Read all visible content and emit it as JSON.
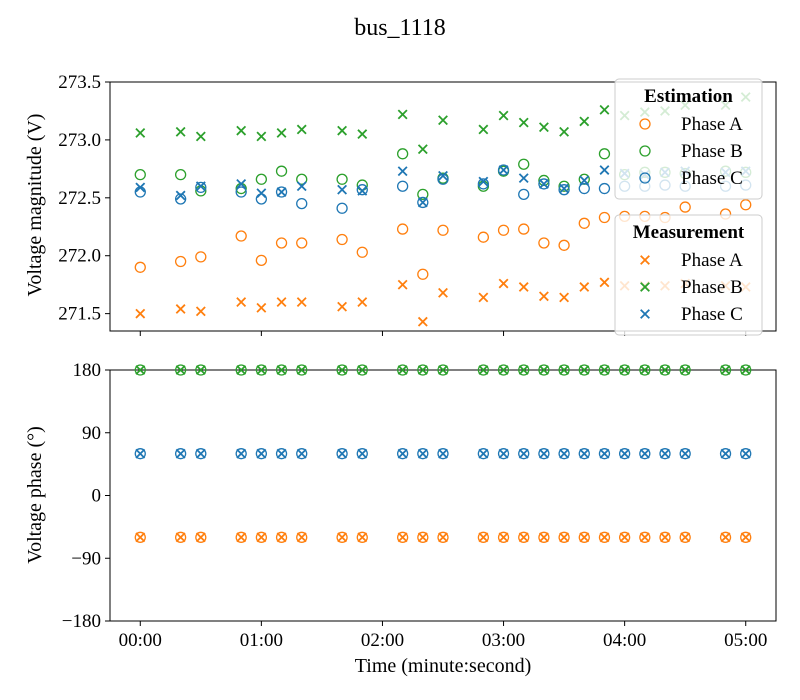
{
  "chart_data": {
    "title": "bus_1118",
    "xlabel": "Time (minute:second)",
    "x_tick_labels": [
      "00:00",
      "01:00",
      "02:00",
      "03:00",
      "04:00",
      "05:00"
    ],
    "x_ticks_seconds": [
      0,
      60,
      120,
      180,
      240,
      300
    ],
    "xlim_seconds": [
      -15,
      315
    ],
    "x_seconds": [
      0,
      20,
      30,
      50,
      60,
      70,
      80,
      100,
      110,
      130,
      140,
      150,
      170,
      180,
      190,
      200,
      210,
      220,
      230,
      240,
      250,
      260,
      270,
      290,
      300
    ],
    "colors": {
      "A": "#ff7f0e",
      "B": "#2ca02c",
      "C": "#1f77b4"
    },
    "legends": [
      {
        "title": "Estimation",
        "marker": "circle",
        "entries": [
          {
            "phase": "A",
            "label": "Phase A"
          },
          {
            "phase": "B",
            "label": "Phase B"
          },
          {
            "phase": "C",
            "label": "Phase C"
          }
        ]
      },
      {
        "title": "Measurement",
        "marker": "x",
        "entries": [
          {
            "phase": "A",
            "label": "Phase A"
          },
          {
            "phase": "B",
            "label": "Phase B"
          },
          {
            "phase": "C",
            "label": "Phase C"
          }
        ]
      }
    ],
    "subplots": [
      {
        "type": "scatter",
        "ylabel": "Voltage magnitude (V)",
        "ylim": [
          271.35,
          273.5
        ],
        "y_ticks": [
          271.5,
          272.0,
          272.5,
          273.0,
          273.5
        ],
        "y_tick_labels": [
          "271.5",
          "272.0",
          "272.5",
          "273.0",
          "273.5"
        ],
        "series": [
          {
            "phase": "A",
            "kind": "estimation",
            "values": [
              271.9,
              271.95,
              271.99,
              272.17,
              271.96,
              272.11,
              272.11,
              272.14,
              272.03,
              272.23,
              271.84,
              272.22,
              272.16,
              272.22,
              272.23,
              272.11,
              272.09,
              272.28,
              272.33,
              272.34,
              272.34,
              272.33,
              272.42,
              272.36,
              272.44
            ]
          },
          {
            "phase": "A",
            "kind": "measurement",
            "values": [
              271.5,
              271.54,
              271.52,
              271.6,
              271.55,
              271.6,
              271.6,
              271.56,
              271.6,
              271.75,
              271.43,
              271.68,
              271.64,
              271.76,
              271.73,
              271.65,
              271.64,
              271.73,
              271.77,
              271.74,
              271.74,
              271.74,
              271.76,
              271.74,
              271.73
            ]
          },
          {
            "phase": "B",
            "kind": "estimation",
            "values": [
              272.7,
              272.7,
              272.56,
              272.58,
              272.66,
              272.73,
              272.66,
              272.66,
              272.61,
              272.88,
              272.53,
              272.67,
              272.6,
              272.73,
              272.79,
              272.65,
              272.6,
              272.66,
              272.88,
              272.7,
              272.72,
              272.72,
              272.71,
              272.73,
              272.72
            ]
          },
          {
            "phase": "B",
            "kind": "measurement",
            "values": [
              273.06,
              273.07,
              273.03,
              273.08,
              273.03,
              273.06,
              273.09,
              273.08,
              273.05,
              273.22,
              272.92,
              273.17,
              273.09,
              273.21,
              273.15,
              273.11,
              273.07,
              273.16,
              273.26,
              273.21,
              273.24,
              273.25,
              273.3,
              273.3,
              273.37
            ]
          },
          {
            "phase": "C",
            "kind": "estimation",
            "values": [
              272.55,
              272.49,
              272.59,
              272.55,
              272.49,
              272.55,
              272.45,
              272.41,
              272.57,
              272.6,
              272.46,
              272.66,
              272.62,
              272.74,
              272.53,
              272.62,
              272.57,
              272.58,
              272.58,
              272.6,
              272.6,
              272.61,
              272.6,
              272.6,
              272.61
            ]
          },
          {
            "phase": "C",
            "kind": "measurement",
            "values": [
              272.59,
              272.52,
              272.6,
              272.62,
              272.54,
              272.55,
              272.6,
              272.57,
              272.56,
              272.73,
              272.46,
              272.69,
              272.64,
              272.74,
              272.67,
              272.62,
              272.58,
              272.65,
              272.74,
              272.71,
              272.7,
              272.72,
              272.73,
              272.72,
              272.73
            ]
          }
        ]
      },
      {
        "type": "scatter",
        "ylabel": "Voltage phase (°)",
        "ylim": [
          -180,
          180
        ],
        "y_ticks": [
          -180,
          -90,
          0,
          90,
          180
        ],
        "y_tick_labels": [
          "−180",
          "−90",
          "0",
          "90",
          "180"
        ],
        "series": [
          {
            "phase": "A",
            "kind": "both",
            "values": [
              -60,
              -60,
              -60,
              -60,
              -60,
              -60,
              -60,
              -60,
              -60,
              -60,
              -60,
              -60,
              -60,
              -60,
              -60,
              -60,
              -60,
              -60,
              -60,
              -60,
              -60,
              -60,
              -60,
              -60,
              -60
            ]
          },
          {
            "phase": "B",
            "kind": "both",
            "values": [
              180,
              180,
              180,
              180,
              180,
              180,
              180,
              180,
              180,
              180,
              180,
              180,
              180,
              180,
              180,
              180,
              180,
              180,
              180,
              180,
              180,
              180,
              180,
              180,
              180
            ]
          },
          {
            "phase": "C",
            "kind": "both",
            "values": [
              60,
              60,
              60,
              60,
              60,
              60,
              60,
              60,
              60,
              60,
              60,
              60,
              60,
              60,
              60,
              60,
              60,
              60,
              60,
              60,
              60,
              60,
              60,
              60,
              60
            ]
          }
        ]
      }
    ]
  }
}
